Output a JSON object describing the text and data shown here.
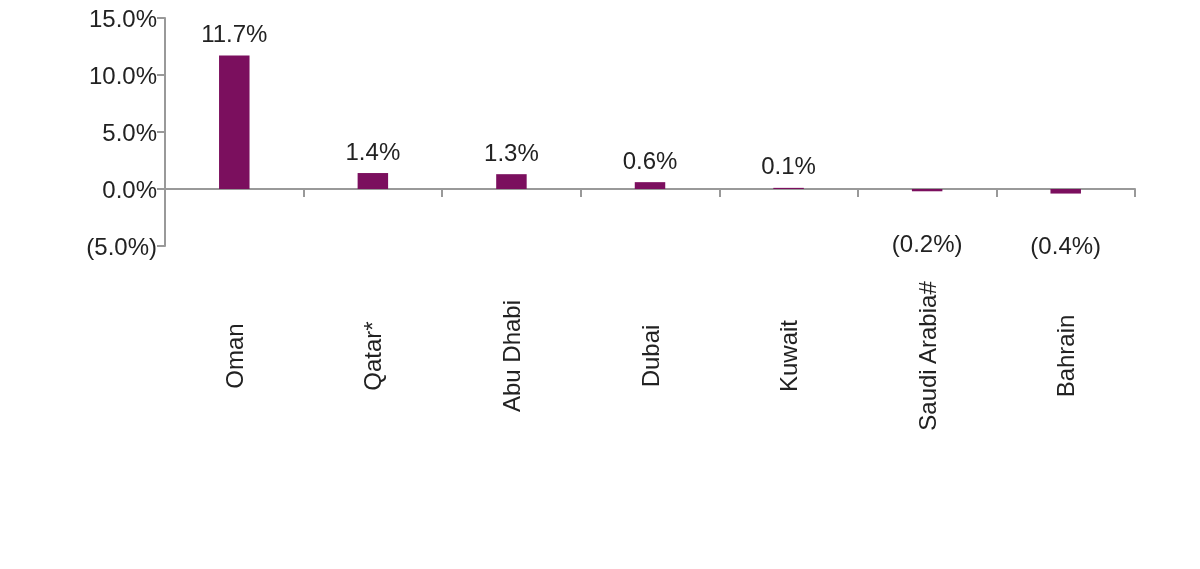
{
  "chart_data": {
    "type": "bar",
    "categories": [
      "Oman",
      "Qatar*",
      "Abu Dhabi",
      "Dubai",
      "Kuwait",
      "Saudi Arabia#",
      "Bahrain"
    ],
    "values": [
      11.7,
      1.4,
      1.3,
      0.6,
      0.1,
      -0.2,
      -0.4
    ],
    "value_labels": [
      "11.7%",
      "1.4%",
      "1.3%",
      "0.6%",
      "0.1%",
      "(0.2%)",
      "(0.4%)"
    ],
    "color": "#7b0f5e",
    "ylim": [
      -5,
      15
    ],
    "yticks": [
      {
        "value": -5,
        "label": "(5.0%)"
      },
      {
        "value": 0,
        "label": "0.0%"
      },
      {
        "value": 5,
        "label": "5.0%"
      },
      {
        "value": 10,
        "label": "10.0%"
      },
      {
        "value": 15,
        "label": "15.0%"
      }
    ]
  }
}
